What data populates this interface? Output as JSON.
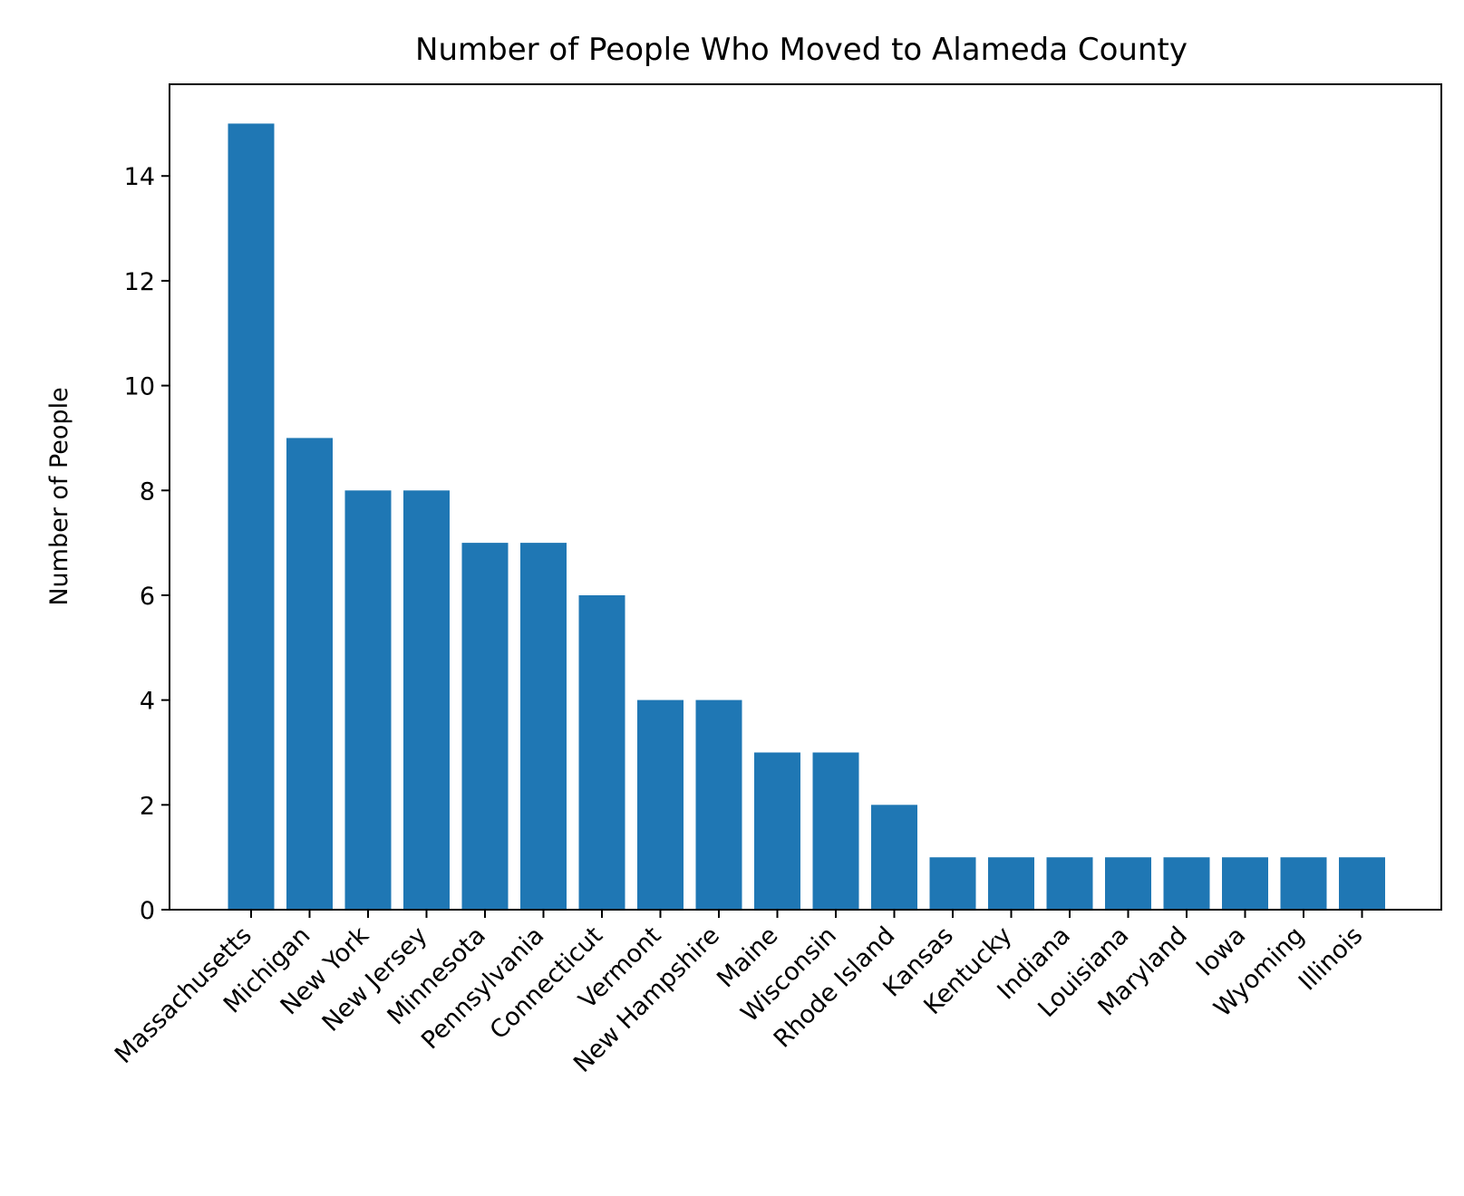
{
  "chart_data": {
    "type": "bar",
    "title": "Number of People Who Moved to Alameda County",
    "xlabel": "",
    "ylabel": "Number of People",
    "categories": [
      "Massachusetts",
      "Michigan",
      "New York",
      "New Jersey",
      "Minnesota",
      "Pennsylvania",
      "Connecticut",
      "Vermont",
      "New Hampshire",
      "Maine",
      "Wisconsin",
      "Rhode Island",
      "Kansas",
      "Kentucky",
      "Indiana",
      "Louisiana",
      "Maryland",
      "Iowa",
      "Wyoming",
      "Illinois"
    ],
    "values": [
      15,
      9,
      8,
      8,
      7,
      7,
      6,
      4,
      4,
      3,
      3,
      2,
      1,
      1,
      1,
      1,
      1,
      1,
      1,
      1
    ],
    "ylim": [
      0,
      15.75
    ],
    "yticks": [
      0,
      2,
      4,
      6,
      8,
      10,
      12,
      14
    ],
    "bar_color": "#1f77b4",
    "grid": false,
    "legend": "none"
  }
}
